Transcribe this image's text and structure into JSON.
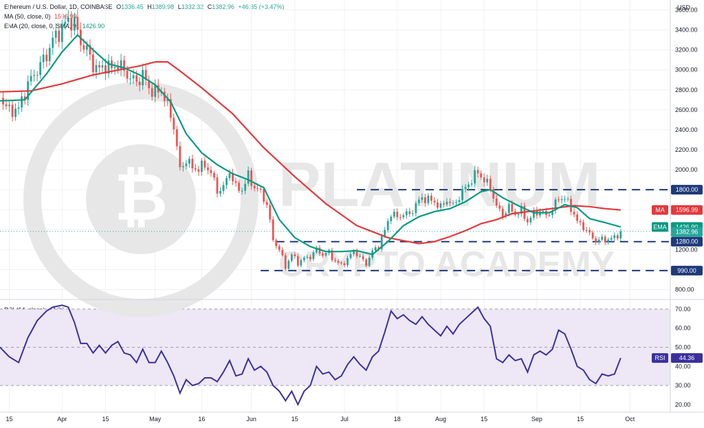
{
  "header": {
    "symbol": "Ethereum / U.S. Dollar, 1D, COINBASE",
    "ohlc": {
      "o_label": "O",
      "o": "1336.45",
      "h_label": "H",
      "h": "1389.98",
      "l_label": "L",
      "l": "1332.32",
      "c_label": "C",
      "c": "1382.96",
      "chg": "+46.35 (+3.47%)"
    },
    "ma_legend": "MA (50, close, 0)",
    "ma_value": "1596.99",
    "ema_legend": "EMA (20, close, 0, SMA, 9)",
    "ema_value": "1426.90",
    "rsi_legend": "RSI (14, close)",
    "rsi_value": "44.36",
    "currency": "USD"
  },
  "watermark": {
    "word1": "PLATINUM",
    "word2": "CRYPTO ACADEMY"
  },
  "tags": {
    "ma_label": "MA",
    "ma_value": "1596.99",
    "ema_label": "EMA",
    "ema_value": "1426.90",
    "last_value": "1382.96",
    "rsi_label": "RSI",
    "rsi_value": "44.36"
  },
  "colors": {
    "up": "#26a69a",
    "down": "#ef5350",
    "ma": "#e5383b",
    "ema": "#089981",
    "rsi": "#3b2f9e",
    "rsi_band": "#ede7f6",
    "level": "#1e3a7b",
    "grid": "#eef0f3",
    "watermark": "#e7e7e7"
  },
  "chart_data": [
    {
      "type": "candlestick",
      "title": "Ethereum / U.S. Dollar, 1D, COINBASE",
      "ylabel": "USD",
      "y_ticks": [
        800,
        1000,
        1200,
        1400,
        1600,
        1800,
        2000,
        2200,
        2400,
        2600,
        2800,
        3000,
        3200,
        3400,
        3600
      ],
      "ylim": [
        700,
        3700
      ],
      "x_labels": [
        {
          "label": "15",
          "day": -17
        },
        {
          "label": "Apr",
          "day": 0
        },
        {
          "label": "15",
          "day": 14
        },
        {
          "label": "May",
          "day": 30
        },
        {
          "label": "16",
          "day": 45
        },
        {
          "label": "Jun",
          "day": 61
        },
        {
          "label": "15",
          "day": 75
        },
        {
          "label": "Jul",
          "day": 91
        },
        {
          "label": "18",
          "day": 108
        },
        {
          "label": "Aug",
          "day": 122
        },
        {
          "label": "15",
          "day": 136
        },
        {
          "label": "Sep",
          "day": 153
        },
        {
          "label": "15",
          "day": 167
        },
        {
          "label": "Oct",
          "day": 183
        }
      ],
      "xlim": [
        -20,
        196
      ],
      "horizontal_levels": [
        {
          "value": 1800,
          "label": "1800.00",
          "from_day": 95
        },
        {
          "value": 1280,
          "label": "1280.00",
          "from_day": 69
        },
        {
          "value": 990,
          "label": "990.00",
          "from_day": 64
        }
      ],
      "price_path": [
        [
          -20,
          2720
        ],
        [
          -17,
          2590
        ],
        [
          -14,
          2610
        ],
        [
          -11,
          2860
        ],
        [
          -8,
          3000
        ],
        [
          -5,
          3150
        ],
        [
          -3,
          3300
        ],
        [
          0,
          3420
        ],
        [
          2,
          3500
        ],
        [
          4,
          3470
        ],
        [
          6,
          3280
        ],
        [
          8,
          3200
        ],
        [
          10,
          3050
        ],
        [
          12,
          3000
        ],
        [
          14,
          3050
        ],
        [
          16,
          3010
        ],
        [
          18,
          3060
        ],
        [
          20,
          2990
        ],
        [
          22,
          2920
        ],
        [
          24,
          2880
        ],
        [
          26,
          2950
        ],
        [
          28,
          2820
        ],
        [
          30,
          2770
        ],
        [
          32,
          2800
        ],
        [
          34,
          2640
        ],
        [
          36,
          2440
        ],
        [
          38,
          2000
        ],
        [
          40,
          2100
        ],
        [
          42,
          2020
        ],
        [
          44,
          2010
        ],
        [
          46,
          2050
        ],
        [
          48,
          1970
        ],
        [
          50,
          1790
        ],
        [
          52,
          1820
        ],
        [
          54,
          1990
        ],
        [
          56,
          1820
        ],
        [
          58,
          1800
        ],
        [
          60,
          1940
        ],
        [
          62,
          1820
        ],
        [
          64,
          1780
        ],
        [
          66,
          1650
        ],
        [
          68,
          1300
        ],
        [
          70,
          1200
        ],
        [
          72,
          1030
        ],
        [
          74,
          1150
        ],
        [
          76,
          1070
        ],
        [
          78,
          1110
        ],
        [
          80,
          1130
        ],
        [
          82,
          1200
        ],
        [
          84,
          1150
        ],
        [
          86,
          1170
        ],
        [
          88,
          1080
        ],
        [
          90,
          1050
        ],
        [
          92,
          1100
        ],
        [
          94,
          1190
        ],
        [
          96,
          1120
        ],
        [
          98,
          1060
        ],
        [
          100,
          1180
        ],
        [
          102,
          1240
        ],
        [
          104,
          1390
        ],
        [
          106,
          1570
        ],
        [
          108,
          1520
        ],
        [
          110,
          1560
        ],
        [
          112,
          1550
        ],
        [
          114,
          1650
        ],
        [
          116,
          1720
        ],
        [
          118,
          1700
        ],
        [
          120,
          1680
        ],
        [
          122,
          1620
        ],
        [
          124,
          1700
        ],
        [
          126,
          1640
        ],
        [
          128,
          1730
        ],
        [
          130,
          1820
        ],
        [
          132,
          1900
        ],
        [
          134,
          1980
        ],
        [
          136,
          1890
        ],
        [
          138,
          1830
        ],
        [
          140,
          1630
        ],
        [
          142,
          1550
        ],
        [
          144,
          1620
        ],
        [
          146,
          1560
        ],
        [
          148,
          1590
        ],
        [
          150,
          1480
        ],
        [
          152,
          1560
        ],
        [
          154,
          1590
        ],
        [
          156,
          1540
        ],
        [
          158,
          1600
        ],
        [
          160,
          1720
        ],
        [
          162,
          1710
        ],
        [
          164,
          1620
        ],
        [
          166,
          1480
        ],
        [
          168,
          1430
        ],
        [
          170,
          1350
        ],
        [
          172,
          1290
        ],
        [
          174,
          1300
        ],
        [
          176,
          1300
        ],
        [
          178,
          1320
        ],
        [
          180,
          1383
        ]
      ],
      "series": [
        {
          "name": "MA (50, close, 0)",
          "color": "#e5383b",
          "last": 1596.99,
          "points": [
            [
              -20,
              2780
            ],
            [
              -10,
              2790
            ],
            [
              0,
              2860
            ],
            [
              10,
              2950
            ],
            [
              20,
              3010
            ],
            [
              25,
              3040
            ],
            [
              30,
              3080
            ],
            [
              34,
              3080
            ],
            [
              38,
              2990
            ],
            [
              45,
              2820
            ],
            [
              55,
              2560
            ],
            [
              65,
              2220
            ],
            [
              75,
              1930
            ],
            [
              85,
              1660
            ],
            [
              95,
              1440
            ],
            [
              100,
              1380
            ],
            [
              105,
              1320
            ],
            [
              110,
              1290
            ],
            [
              115,
              1260
            ],
            [
              120,
              1280
            ],
            [
              125,
              1330
            ],
            [
              130,
              1390
            ],
            [
              135,
              1460
            ],
            [
              140,
              1500
            ],
            [
              145,
              1560
            ],
            [
              150,
              1580
            ],
            [
              155,
              1600
            ],
            [
              160,
              1620
            ],
            [
              165,
              1640
            ],
            [
              170,
              1630
            ],
            [
              175,
              1610
            ],
            [
              180,
              1597
            ]
          ]
        },
        {
          "name": "EMA (20, close, 0, SMA, 9)",
          "color": "#089981",
          "last": 1426.9,
          "points": [
            [
              -20,
              2690
            ],
            [
              -12,
              2700
            ],
            [
              -5,
              2960
            ],
            [
              0,
              3180
            ],
            [
              5,
              3350
            ],
            [
              10,
              3200
            ],
            [
              15,
              3060
            ],
            [
              20,
              3020
            ],
            [
              25,
              2950
            ],
            [
              30,
              2850
            ],
            [
              35,
              2680
            ],
            [
              40,
              2360
            ],
            [
              45,
              2170
            ],
            [
              50,
              2050
            ],
            [
              55,
              1960
            ],
            [
              60,
              1900
            ],
            [
              65,
              1820
            ],
            [
              70,
              1500
            ],
            [
              75,
              1320
            ],
            [
              80,
              1230
            ],
            [
              85,
              1180
            ],
            [
              90,
              1180
            ],
            [
              95,
              1190
            ],
            [
              100,
              1150
            ],
            [
              105,
              1280
            ],
            [
              110,
              1440
            ],
            [
              115,
              1530
            ],
            [
              120,
              1580
            ],
            [
              125,
              1610
            ],
            [
              130,
              1680
            ],
            [
              135,
              1780
            ],
            [
              138,
              1800
            ],
            [
              142,
              1720
            ],
            [
              147,
              1640
            ],
            [
              152,
              1570
            ],
            [
              157,
              1570
            ],
            [
              162,
              1650
            ],
            [
              166,
              1620
            ],
            [
              170,
              1510
            ],
            [
              175,
              1470
            ],
            [
              180,
              1427
            ]
          ]
        }
      ]
    },
    {
      "type": "line",
      "title": "RSI (14, close)",
      "y_ticks": [
        20,
        30,
        40,
        50,
        60,
        70
      ],
      "ylim": [
        16,
        75
      ],
      "band": [
        30,
        70
      ],
      "series": [
        {
          "name": "RSI (14, close)",
          "color": "#3b2f9e",
          "last": 44.36,
          "points": [
            [
              -20,
              50
            ],
            [
              -17,
              45
            ],
            [
              -14,
              42
            ],
            [
              -11,
              55
            ],
            [
              -8,
              64
            ],
            [
              -5,
              69
            ],
            [
              -3,
              71
            ],
            [
              0,
              72
            ],
            [
              2,
              71
            ],
            [
              4,
              63
            ],
            [
              6,
              52
            ],
            [
              8,
              52
            ],
            [
              10,
              47
            ],
            [
              12,
              51
            ],
            [
              14,
              47
            ],
            [
              16,
              51
            ],
            [
              18,
              53
            ],
            [
              20,
              47
            ],
            [
              22,
              46
            ],
            [
              24,
              42
            ],
            [
              26,
              49
            ],
            [
              28,
              42
            ],
            [
              30,
              42
            ],
            [
              32,
              48
            ],
            [
              34,
              42
            ],
            [
              36,
              35
            ],
            [
              38,
              26
            ],
            [
              40,
              33
            ],
            [
              42,
              30
            ],
            [
              44,
              31
            ],
            [
              46,
              34
            ],
            [
              48,
              34
            ],
            [
              50,
              32
            ],
            [
              52,
              37
            ],
            [
              54,
              43
            ],
            [
              56,
              35
            ],
            [
              58,
              36
            ],
            [
              60,
              44
            ],
            [
              62,
              38
            ],
            [
              64,
              40
            ],
            [
              66,
              37
            ],
            [
              68,
              30
            ],
            [
              70,
              27
            ],
            [
              72,
              22
            ],
            [
              74,
              27
            ],
            [
              76,
              20
            ],
            [
              78,
              27
            ],
            [
              80,
              30
            ],
            [
              82,
              40
            ],
            [
              84,
              36
            ],
            [
              86,
              37
            ],
            [
              88,
              33
            ],
            [
              90,
              35
            ],
            [
              92,
              41
            ],
            [
              94,
              45
            ],
            [
              96,
              41
            ],
            [
              98,
              38
            ],
            [
              100,
              45
            ],
            [
              102,
              48
            ],
            [
              104,
              58
            ],
            [
              106,
              69
            ],
            [
              108,
              65
            ],
            [
              110,
              67
            ],
            [
              112,
              64
            ],
            [
              114,
              62
            ],
            [
              116,
              66
            ],
            [
              118,
              62
            ],
            [
              120,
              59
            ],
            [
              122,
              56
            ],
            [
              124,
              61
            ],
            [
              126,
              57
            ],
            [
              128,
              62
            ],
            [
              130,
              65
            ],
            [
              132,
              68
            ],
            [
              134,
              71
            ],
            [
              136,
              65
            ],
            [
              138,
              61
            ],
            [
              140,
              44
            ],
            [
              142,
              42
            ],
            [
              144,
              46
            ],
            [
              146,
              43
            ],
            [
              148,
              44
            ],
            [
              150,
              37
            ],
            [
              152,
              46
            ],
            [
              154,
              48
            ],
            [
              156,
              46
            ],
            [
              158,
              49
            ],
            [
              160,
              59
            ],
            [
              162,
              57
            ],
            [
              164,
              49
            ],
            [
              166,
              40
            ],
            [
              168,
              38
            ],
            [
              170,
              33
            ],
            [
              172,
              31
            ],
            [
              174,
              36
            ],
            [
              176,
              35
            ],
            [
              178,
              36
            ],
            [
              180,
              44.36
            ]
          ]
        }
      ]
    }
  ]
}
